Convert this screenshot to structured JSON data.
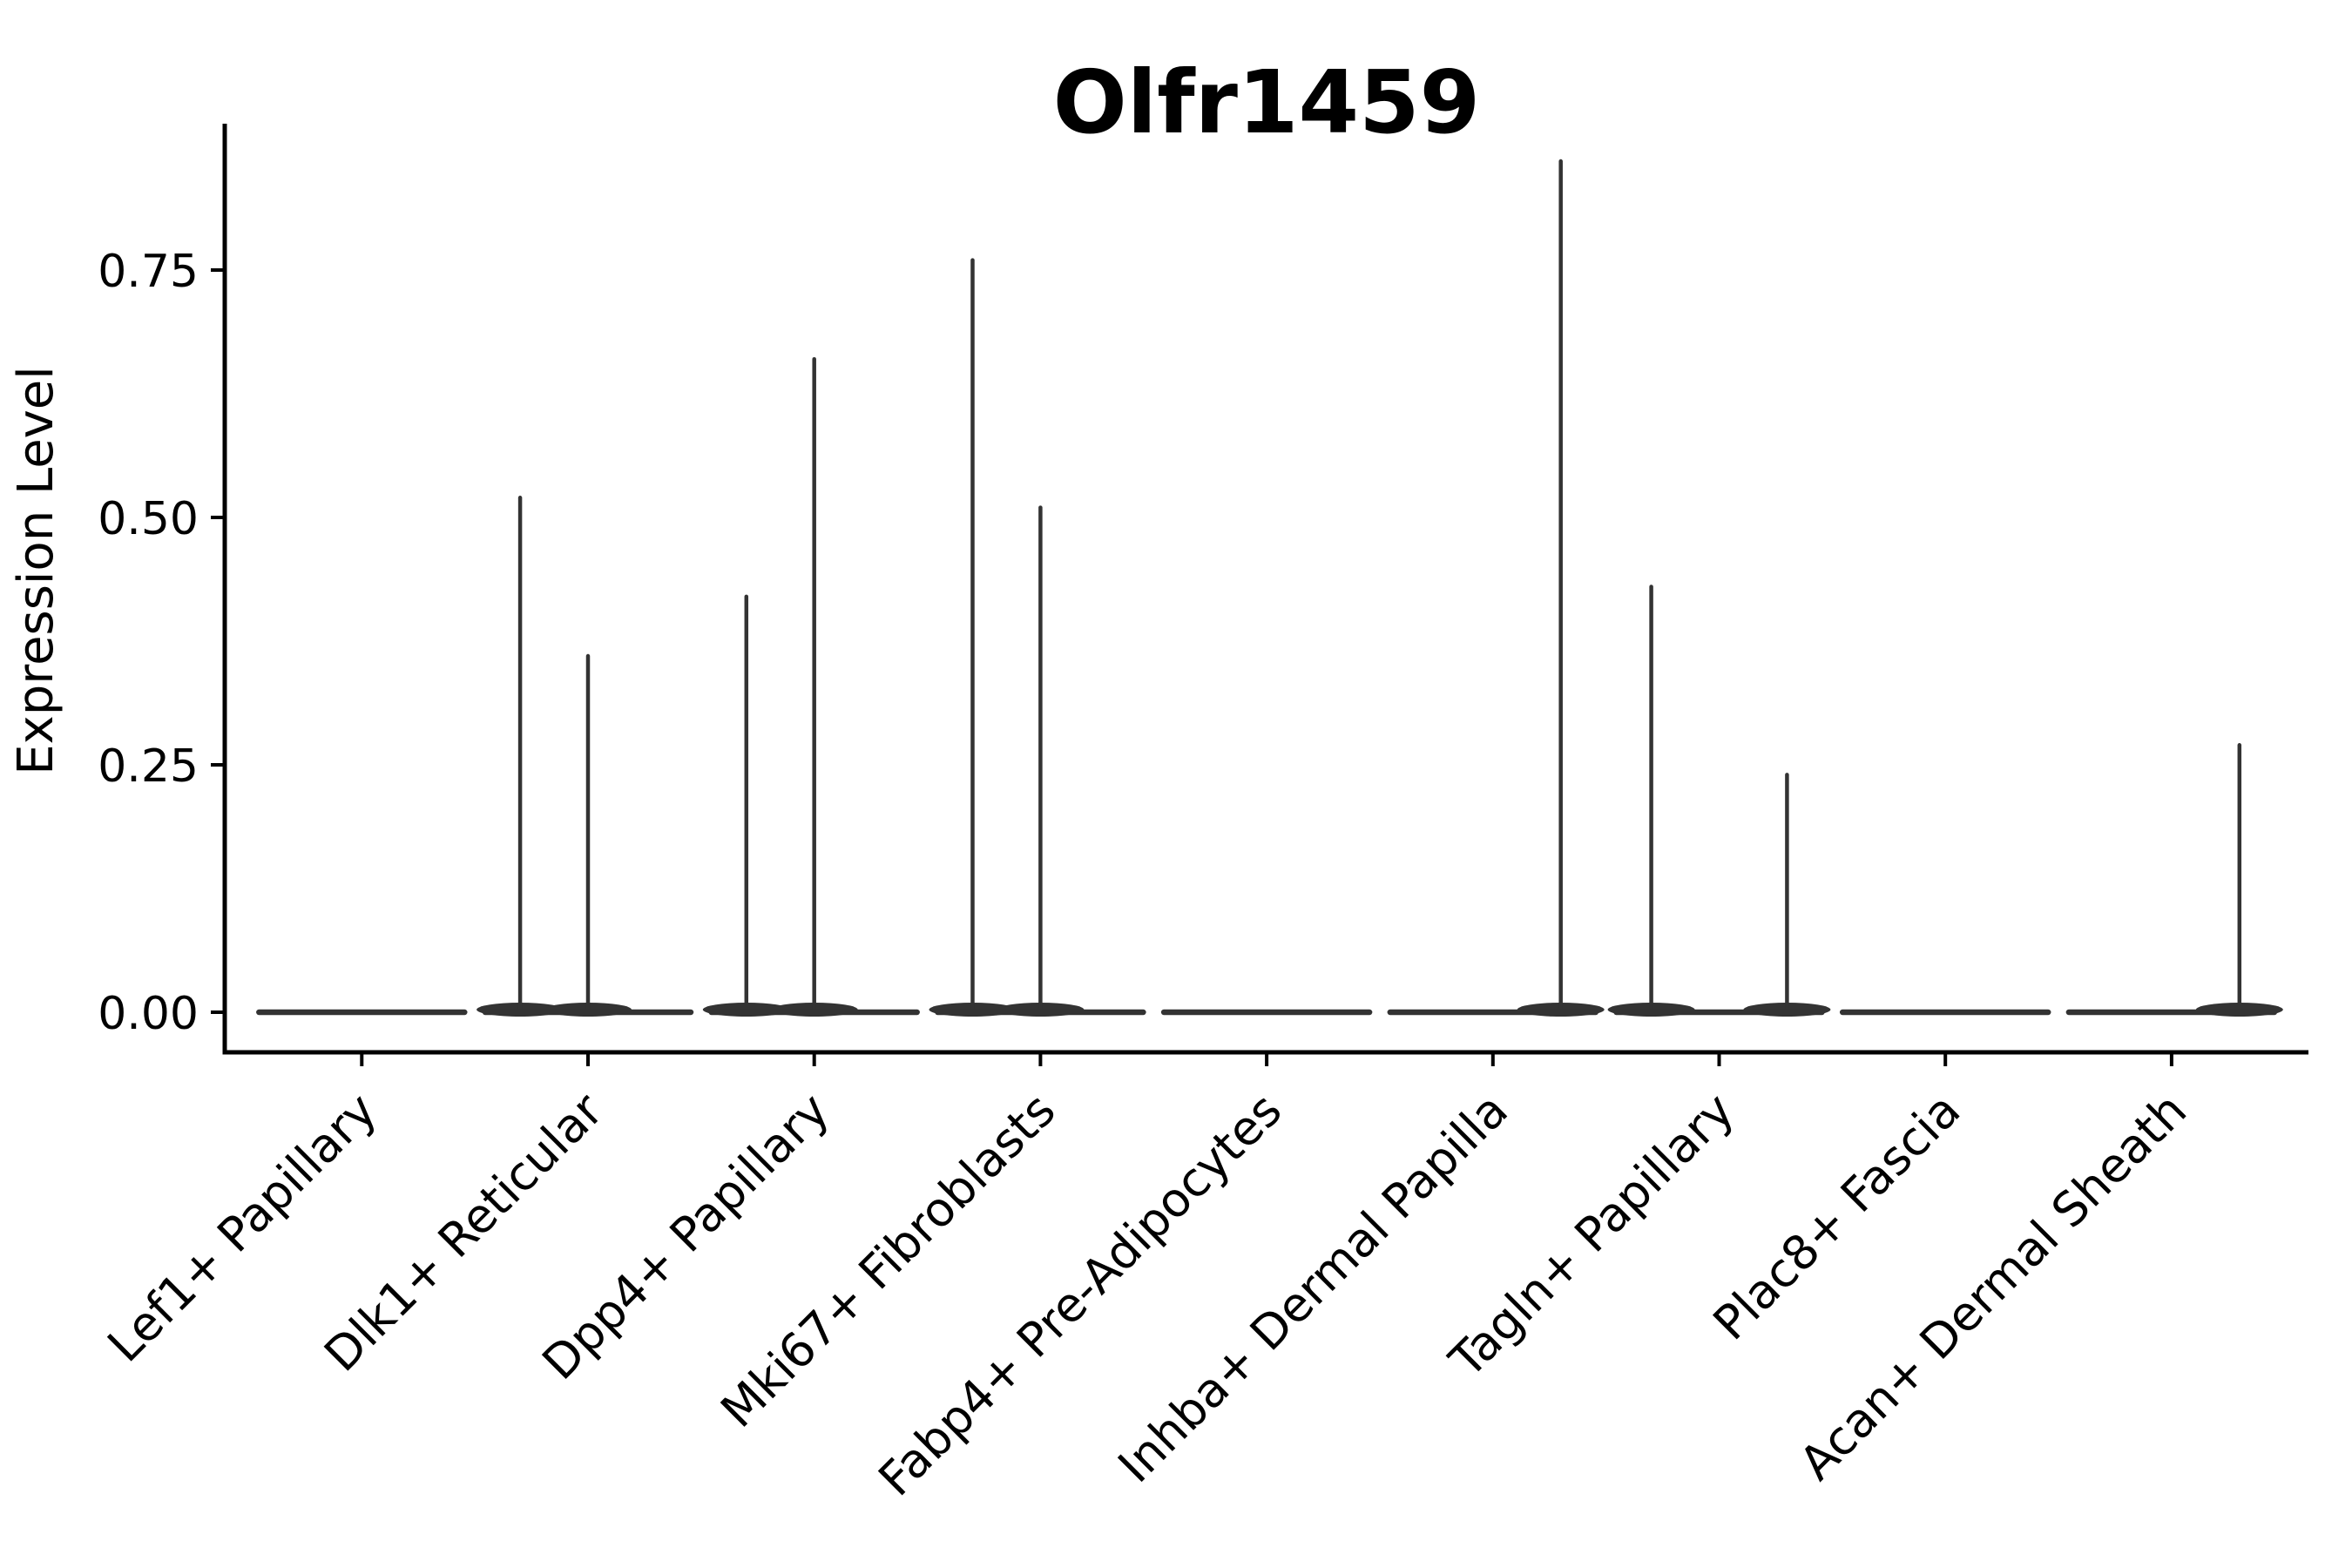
{
  "figure": {
    "title": "Olfr1459",
    "background": "#ffffff"
  },
  "y_axis": {
    "label": "Expression Level",
    "ticks": [
      {
        "label": "0.00",
        "value": 0.0
      },
      {
        "label": "0.25",
        "value": 0.25
      },
      {
        "label": "0.50",
        "value": 0.5
      },
      {
        "label": "0.75",
        "value": 0.75
      }
    ],
    "range": [
      -0.04,
      0.9
    ]
  },
  "x_axis": {
    "categories": [
      "Lef1+ Papillary",
      "Dlk1+ Reticular",
      "Dpp4+ Papillary",
      "Mki67+ Fibroblasts",
      "Fabp4+ Pre-Adipocytes",
      "Inhba+ Dermal Papilla",
      "Tagln+ Papillary",
      "Plac8+ Fascia",
      "Acan+ Dermal Sheath"
    ]
  },
  "colors": {
    "violin": "#333333",
    "axis": "#000000",
    "text": "#000000",
    "background": "#ffffff"
  },
  "chart_data": {
    "type": "violin",
    "title": "Olfr1459",
    "xlabel": "",
    "ylabel": "Expression Level",
    "categories": [
      "Lef1+ Papillary",
      "Dlk1+ Reticular",
      "Dpp4+ Papillary",
      "Mki67+ Fibroblasts",
      "Fabp4+ Pre-Adipocytes",
      "Inhba+ Dermal Papilla",
      "Tagln+ Papillary",
      "Plac8+ Fascia",
      "Acan+ Dermal Sheath"
    ],
    "yticks": [
      0.0,
      0.25,
      0.5,
      0.75
    ],
    "ylim": [
      -0.04,
      0.9
    ],
    "grid": false,
    "legend": false,
    "description": "Flat violins at expression 0 with thin vertical density spikes at nonzero expression values; spike horizontal position given as fraction of category spacing from the category center.",
    "violins": [
      {
        "category": "Lef1+ Papillary",
        "baseline_value": 0,
        "max_expression": 0.0,
        "spikes": []
      },
      {
        "category": "Dlk1+ Reticular",
        "baseline_value": 0,
        "max_expression": 0.52,
        "spikes": [
          {
            "value": 0.52,
            "offset_frac": -0.3
          },
          {
            "value": 0.36,
            "offset_frac": 0.0
          }
        ]
      },
      {
        "category": "Dpp4+ Papillary",
        "baseline_value": 0,
        "max_expression": 0.66,
        "spikes": [
          {
            "value": 0.42,
            "offset_frac": -0.3
          },
          {
            "value": 0.66,
            "offset_frac": 0.0
          }
        ]
      },
      {
        "category": "Mki67+ Fibroblasts",
        "baseline_value": 0,
        "max_expression": 0.76,
        "spikes": [
          {
            "value": 0.76,
            "offset_frac": -0.3
          },
          {
            "value": 0.51,
            "offset_frac": 0.0
          }
        ]
      },
      {
        "category": "Fabp4+ Pre-Adipocytes",
        "baseline_value": 0,
        "max_expression": 0.0,
        "spikes": []
      },
      {
        "category": "Inhba+ Dermal Papilla",
        "baseline_value": 0,
        "max_expression": 0.86,
        "spikes": [
          {
            "value": 0.86,
            "offset_frac": 0.3
          }
        ]
      },
      {
        "category": "Tagln+ Papillary",
        "baseline_value": 0,
        "max_expression": 0.43,
        "spikes": [
          {
            "value": 0.43,
            "offset_frac": -0.3
          },
          {
            "value": 0.24,
            "offset_frac": 0.3
          }
        ]
      },
      {
        "category": "Plac8+ Fascia",
        "baseline_value": 0,
        "max_expression": 0.0,
        "spikes": []
      },
      {
        "category": "Acan+ Dermal Sheath",
        "baseline_value": 0,
        "max_expression": 0.27,
        "spikes": [
          {
            "value": 0.27,
            "offset_frac": 0.3
          }
        ]
      }
    ]
  }
}
